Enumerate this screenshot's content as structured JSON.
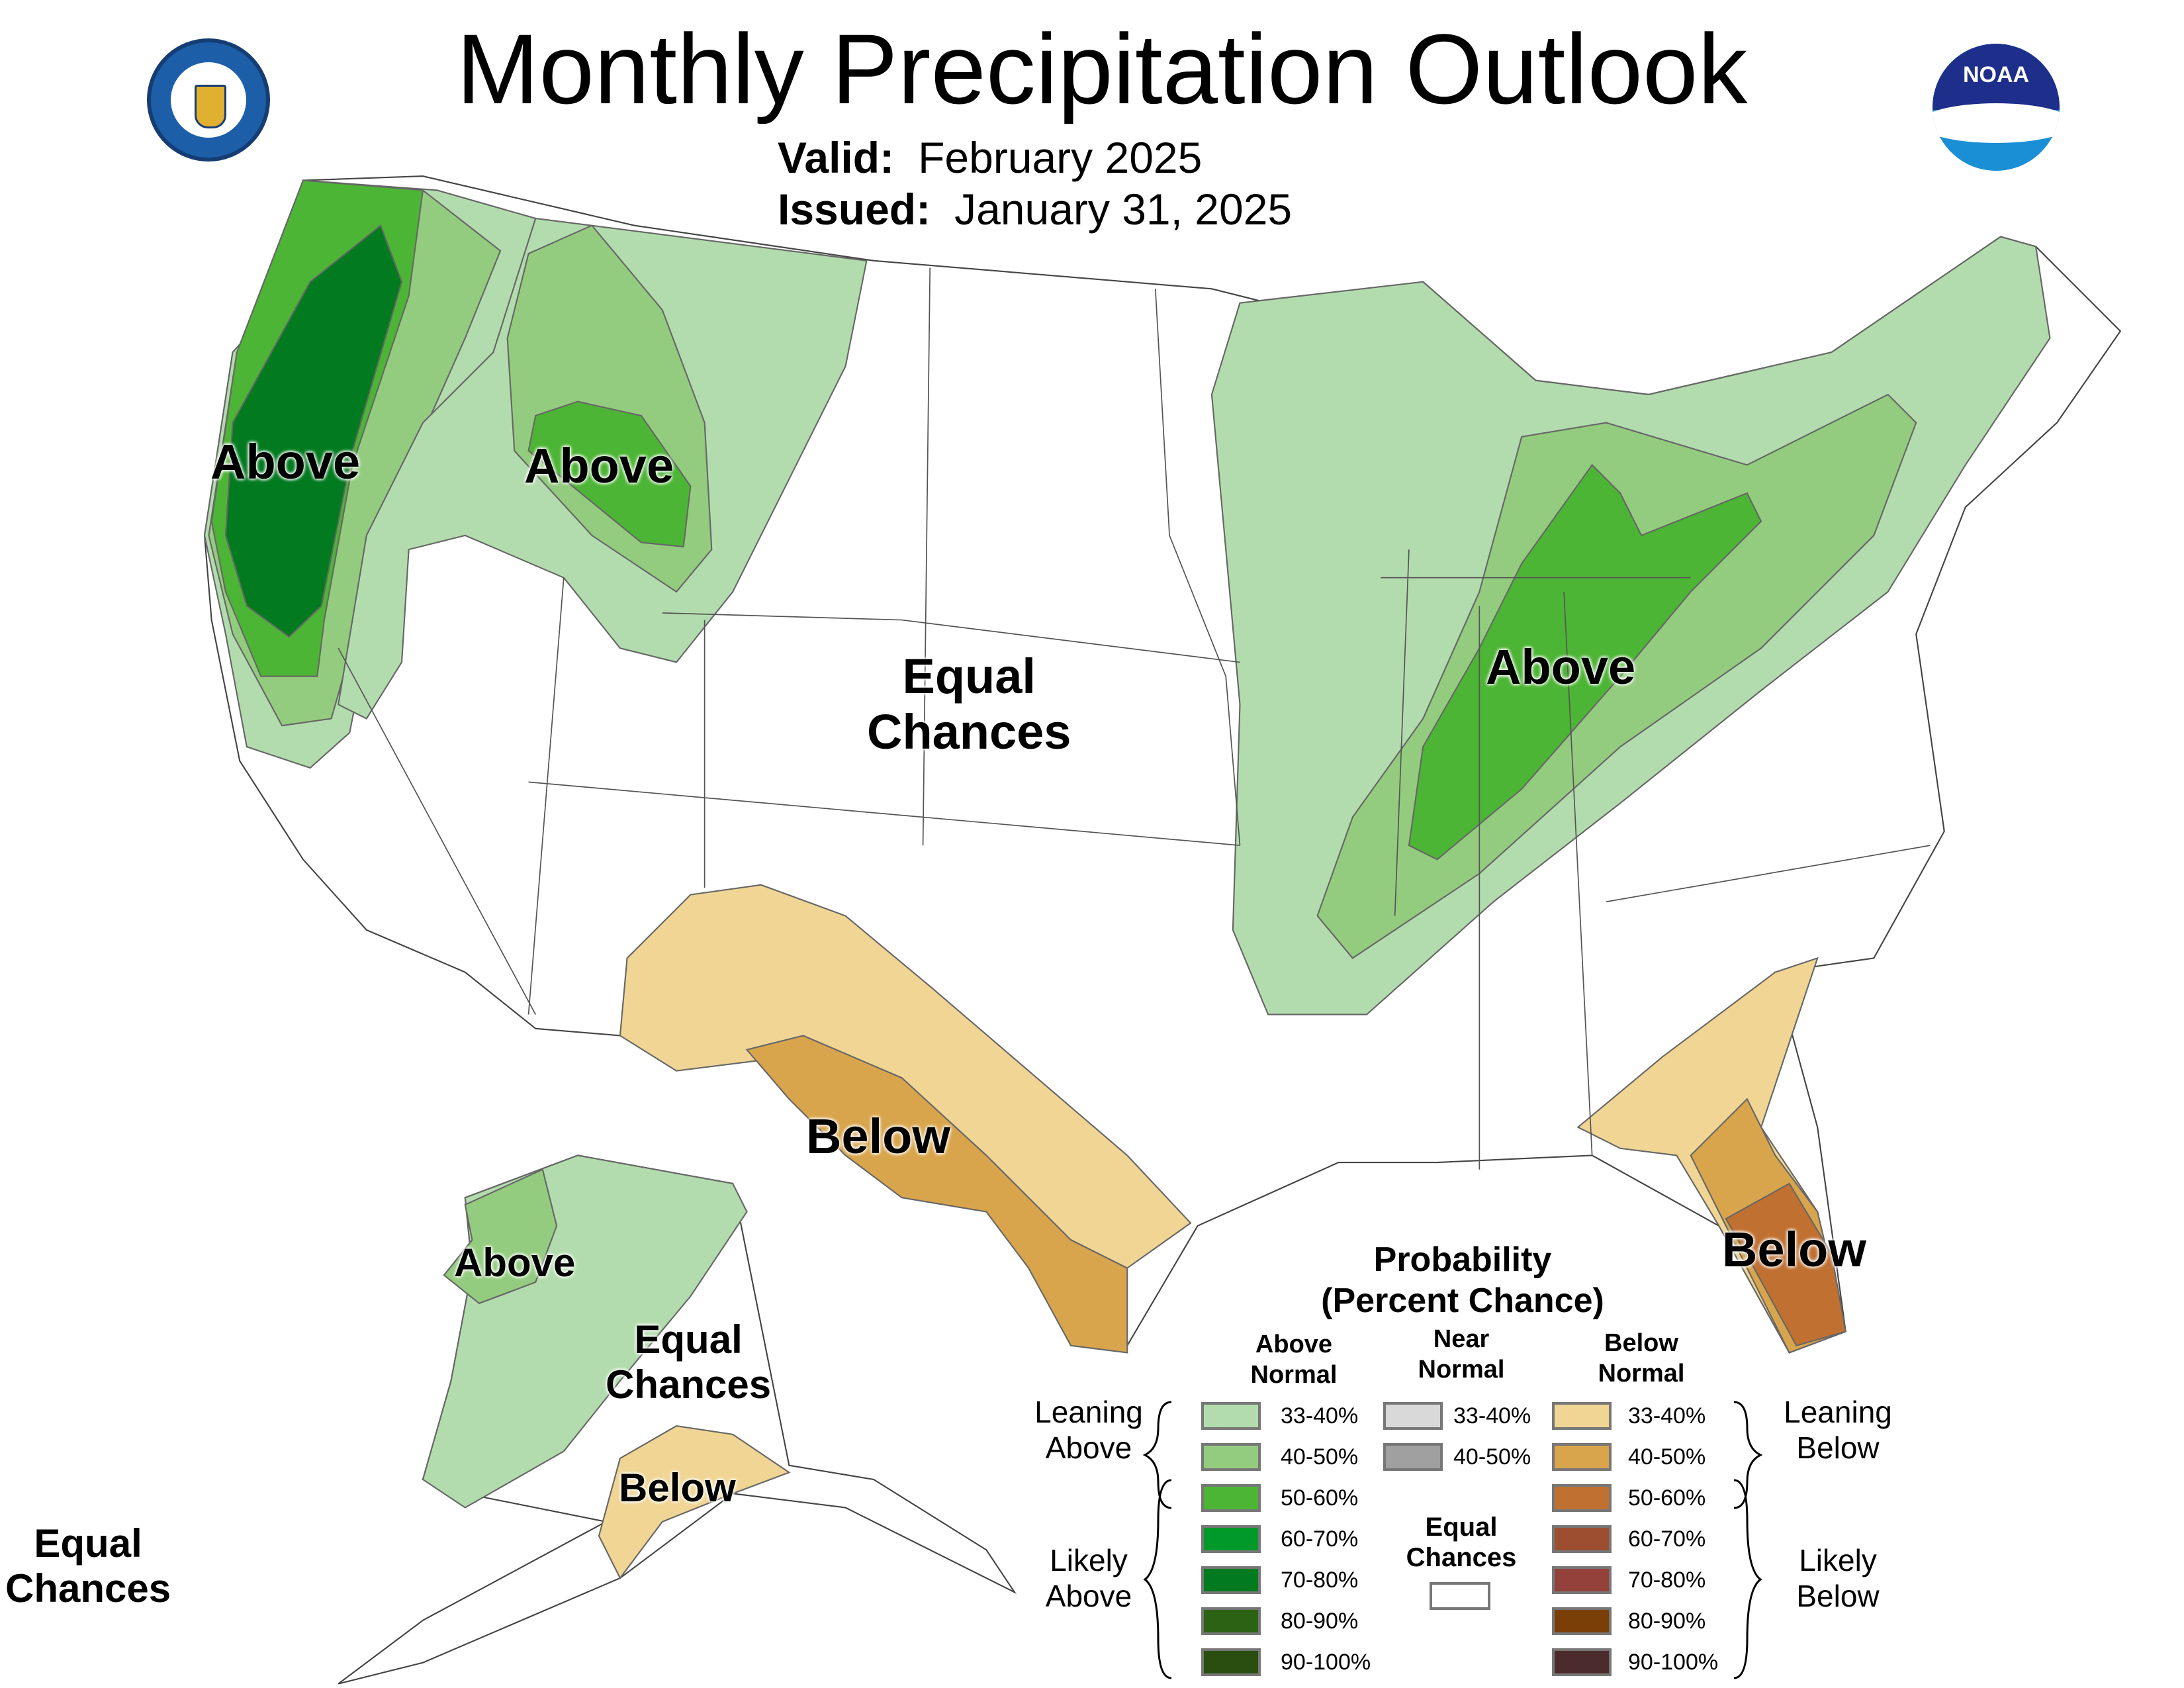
{
  "header": {
    "title": "Monthly Precipitation Outlook",
    "valid_label": "Valid:",
    "valid_value": "February 2025",
    "issued_label": "Issued:",
    "issued_value": "January 31, 2025"
  },
  "logos": {
    "left": "Department of Commerce seal - United States of America",
    "right": "NOAA"
  },
  "map_labels": {
    "above_west": "Above",
    "above_idaho": "Above",
    "ec_central": [
      "Equal",
      "Chances"
    ],
    "above_ohio": "Above",
    "below_southwest": "Below",
    "below_florida": "Below",
    "ak_above": "Above",
    "ak_ec": [
      "Equal",
      "Chances"
    ],
    "ak_below": "Below",
    "hi_ec": [
      "Equal",
      "Chances"
    ]
  },
  "legend": {
    "title": [
      "Probability",
      "(Percent Chance)"
    ],
    "columns": {
      "above": [
        "Above",
        "Normal"
      ],
      "near": [
        "Near",
        "Normal"
      ],
      "below": [
        "Below",
        "Normal"
      ]
    },
    "groups": {
      "leaning_above": [
        "Leaning",
        "Above"
      ],
      "likely_above": [
        "Likely",
        "Above"
      ],
      "leaning_below": [
        "Leaning",
        "Below"
      ],
      "likely_below": [
        "Likely",
        "Below"
      ]
    },
    "above": [
      {
        "range": "33-40%",
        "color": "#b3dcae"
      },
      {
        "range": "40-50%",
        "color": "#94cc7f"
      },
      {
        "range": "50-60%",
        "color": "#4db535"
      },
      {
        "range": "60-70%",
        "color": "#019a2a"
      },
      {
        "range": "70-80%",
        "color": "#027b20"
      },
      {
        "range": "80-90%",
        "color": "#2c6214"
      },
      {
        "range": "90-100%",
        "color": "#2a4e10"
      }
    ],
    "near": [
      {
        "range": "33-40%",
        "color": "#d9d9d9"
      },
      {
        "range": "40-50%",
        "color": "#a0a0a0"
      }
    ],
    "equal_chances": [
      "Equal",
      "Chances"
    ],
    "below": [
      {
        "range": "33-40%",
        "color": "#f0d595"
      },
      {
        "range": "40-50%",
        "color": "#d9a54c"
      },
      {
        "range": "50-60%",
        "color": "#c07132"
      },
      {
        "range": "60-70%",
        "color": "#9d4e30"
      },
      {
        "range": "70-80%",
        "color": "#93413a"
      },
      {
        "range": "80-90%",
        "color": "#7a3e07"
      },
      {
        "range": "90-100%",
        "color": "#4b2b2b"
      }
    ]
  }
}
